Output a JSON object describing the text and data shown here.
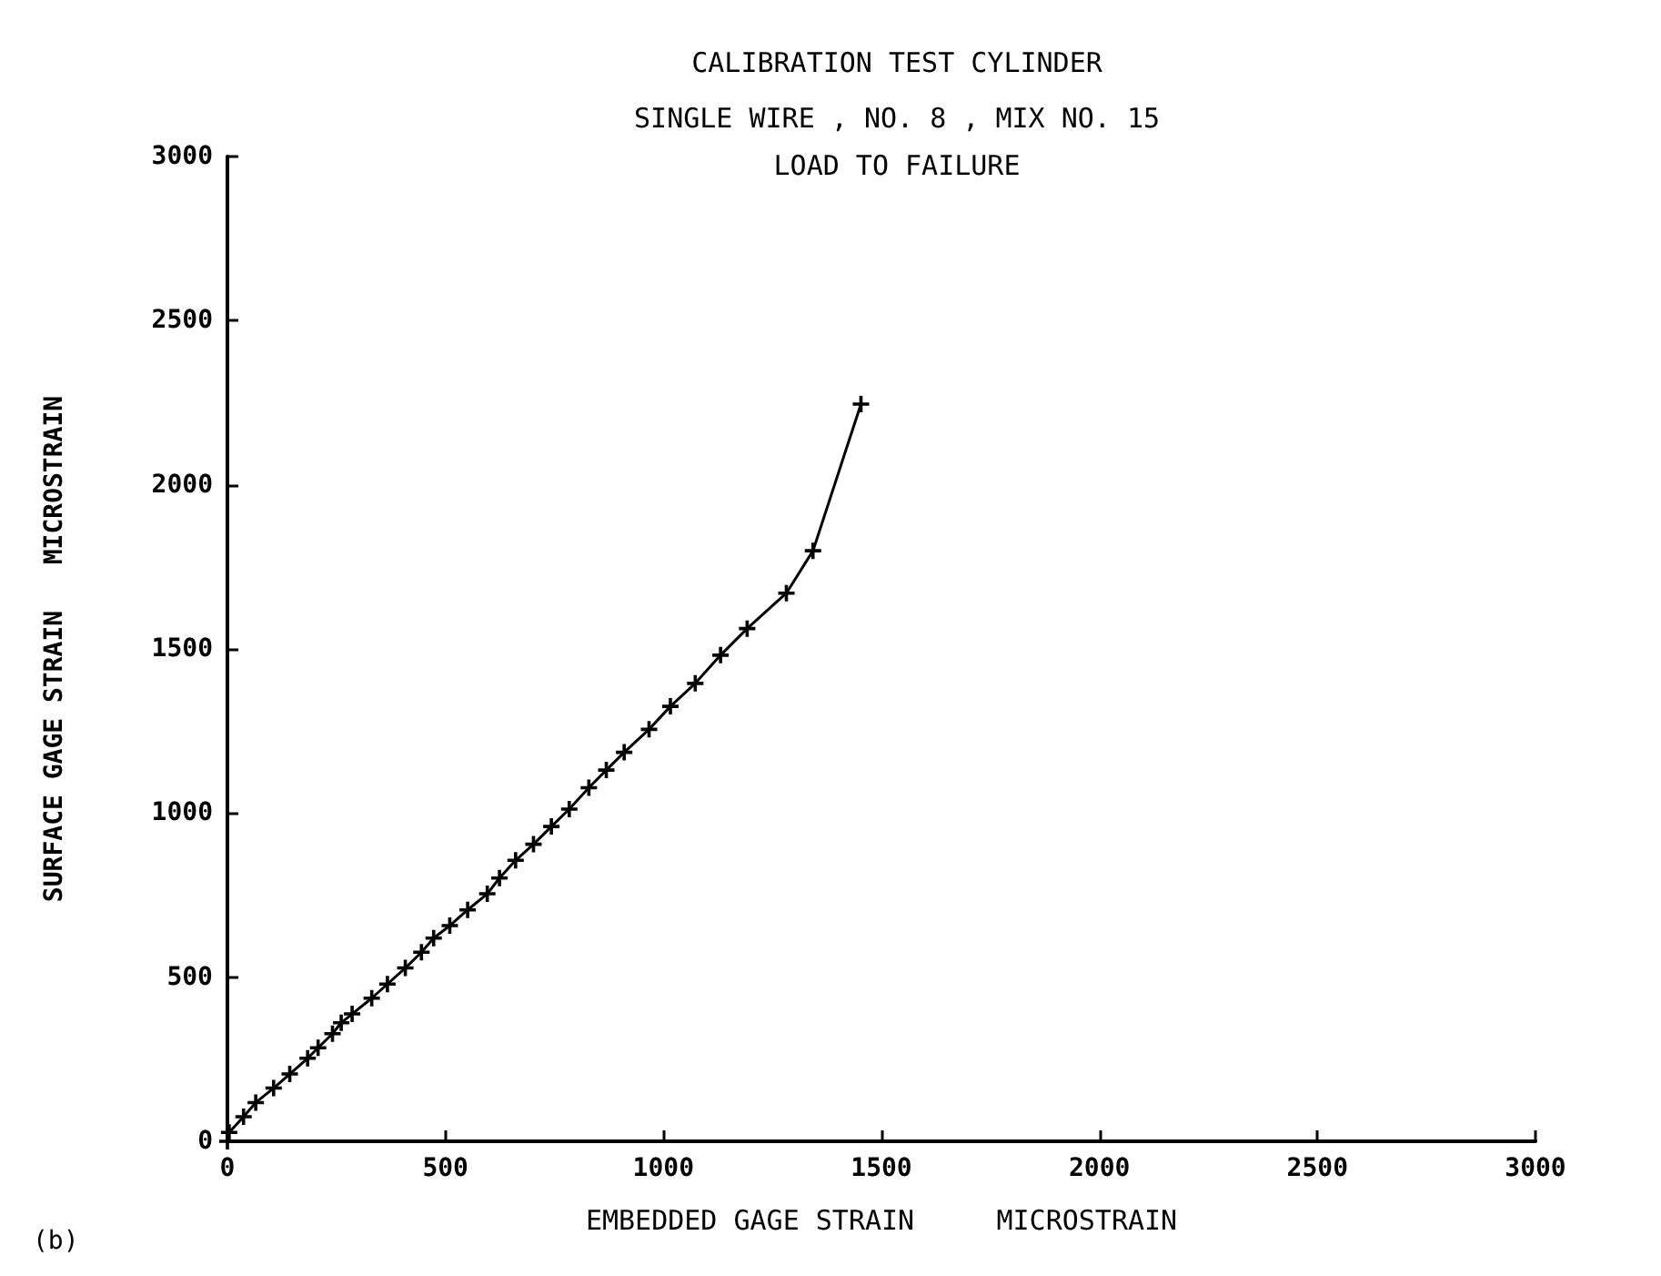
{
  "chart_data": {
    "type": "line",
    "title": "CALIBRATION TEST CYLINDER",
    "subtitle": "SINGLE WIRE , NO. 8 , MIX NO. 15\nLOAD TO FAILURE",
    "xlabel": "EMBEDDED GAGE STRAIN     MICROSTRAIN",
    "ylabel": "SURFACE GAGE STRAIN   MICROSTRAIN",
    "annotations": [
      "(b)"
    ],
    "series": [
      {
        "color": "#000000",
        "x": [
          0,
          4,
          37,
          65,
          106,
          143,
          184,
          208,
          241,
          261,
          286,
          331,
          367,
          408,
          445,
          473,
          510,
          551,
          596,
          624,
          661,
          702,
          743,
          784,
          829,
          869,
          910,
          967,
          1016,
          1073,
          1131,
          1192,
          1282,
          1343,
          1453
        ],
        "values": [
          0,
          27,
          75,
          118,
          162,
          205,
          253,
          285,
          328,
          361,
          388,
          436,
          479,
          528,
          576,
          619,
          657,
          705,
          754,
          802,
          856,
          905,
          959,
          1012,
          1077,
          1131,
          1185,
          1255,
          1325,
          1395,
          1481,
          1562,
          1670,
          1799,
          2246
        ]
      }
    ],
    "xlim": [
      0,
      3000
    ],
    "xticks": [
      0,
      500,
      1000,
      1500,
      2000,
      2500,
      3000
    ],
    "ylim": [
      0,
      3000
    ],
    "yticks": [
      0,
      500,
      1000,
      1500,
      2000,
      2500,
      3000
    ],
    "grid": false,
    "marker": "cross",
    "line_style": "solid"
  }
}
